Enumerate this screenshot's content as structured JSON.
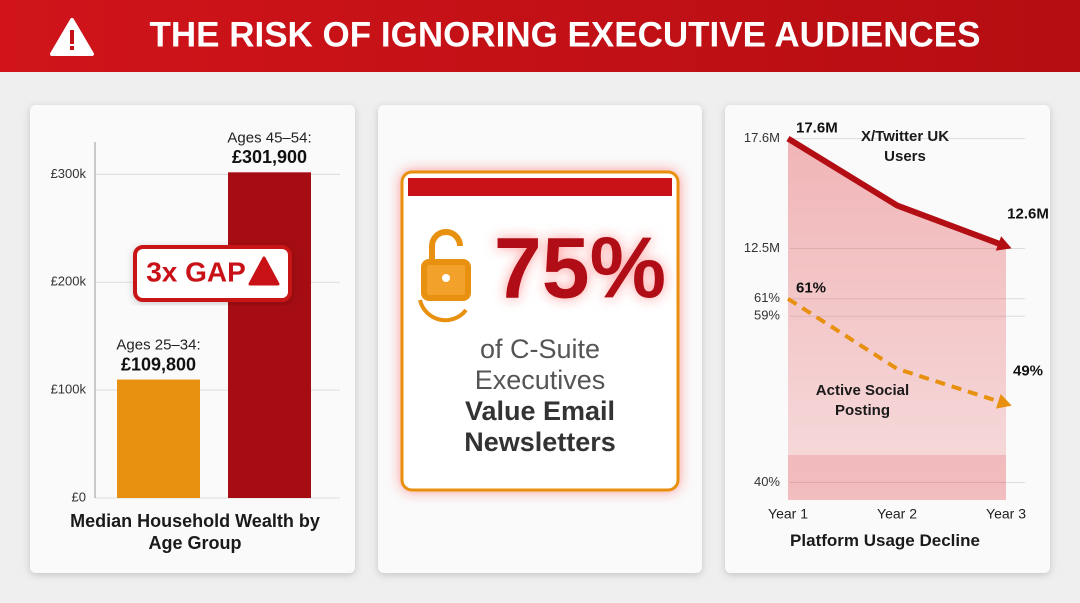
{
  "title": "THE RISK OF IGNORING EXECUTIVE AUDIENCES",
  "chart_data": [
    {
      "type": "bar",
      "xlabel": "Median Household Wealth by Age Group",
      "categories": [
        "Ages 25–34:",
        "Ages 45–54:"
      ],
      "values": [
        109800,
        301900
      ],
      "value_labels": [
        "£109,800",
        "£301,900"
      ],
      "colors": [
        "#e8900f",
        "#a50d12"
      ],
      "ylim": [
        0,
        330000
      ],
      "yticks": [
        {
          "value": 0,
          "label": "£0"
        },
        {
          "value": 100000,
          "label": "£100k"
        },
        {
          "value": 200000,
          "label": "£200k"
        },
        {
          "value": 300000,
          "label": "£300k"
        }
      ],
      "annotation": "3x GAP",
      "grid": true
    },
    {
      "type": "line",
      "xlabel": "Platform Usage Decline",
      "categories": [
        "Year 1",
        "Year 2",
        "Year 3"
      ],
      "ylim": [
        11.5,
        18
      ],
      "yticks": [
        {
          "value": 17.6,
          "label": "17.6M"
        },
        {
          "value": 12.5,
          "label": "12.5M"
        }
      ],
      "y2lim": [
        38,
        62
      ],
      "y2ticks": [
        {
          "value": 61,
          "label": "61%"
        },
        {
          "value": 59,
          "label": "59%"
        },
        {
          "value": 40,
          "label": "40%"
        }
      ],
      "grid": true,
      "series": [
        {
          "name": "X/Twitter UK Users",
          "color": "#b30e14",
          "values": [
            17.6,
            14.5,
            12.6
          ],
          "value_labels": [
            "17.6M",
            null,
            "12.6M"
          ]
        },
        {
          "name": "Active Social Posting",
          "color": "#e8900f",
          "axis": "y2",
          "dashed": true,
          "values": [
            61,
            53,
            49
          ],
          "value_labels": [
            "61%",
            null,
            "49%"
          ]
        }
      ]
    }
  ],
  "stat": {
    "value": "75%",
    "text": "of C-Suite Executives",
    "emphasis": "Value Email Newsletters"
  }
}
